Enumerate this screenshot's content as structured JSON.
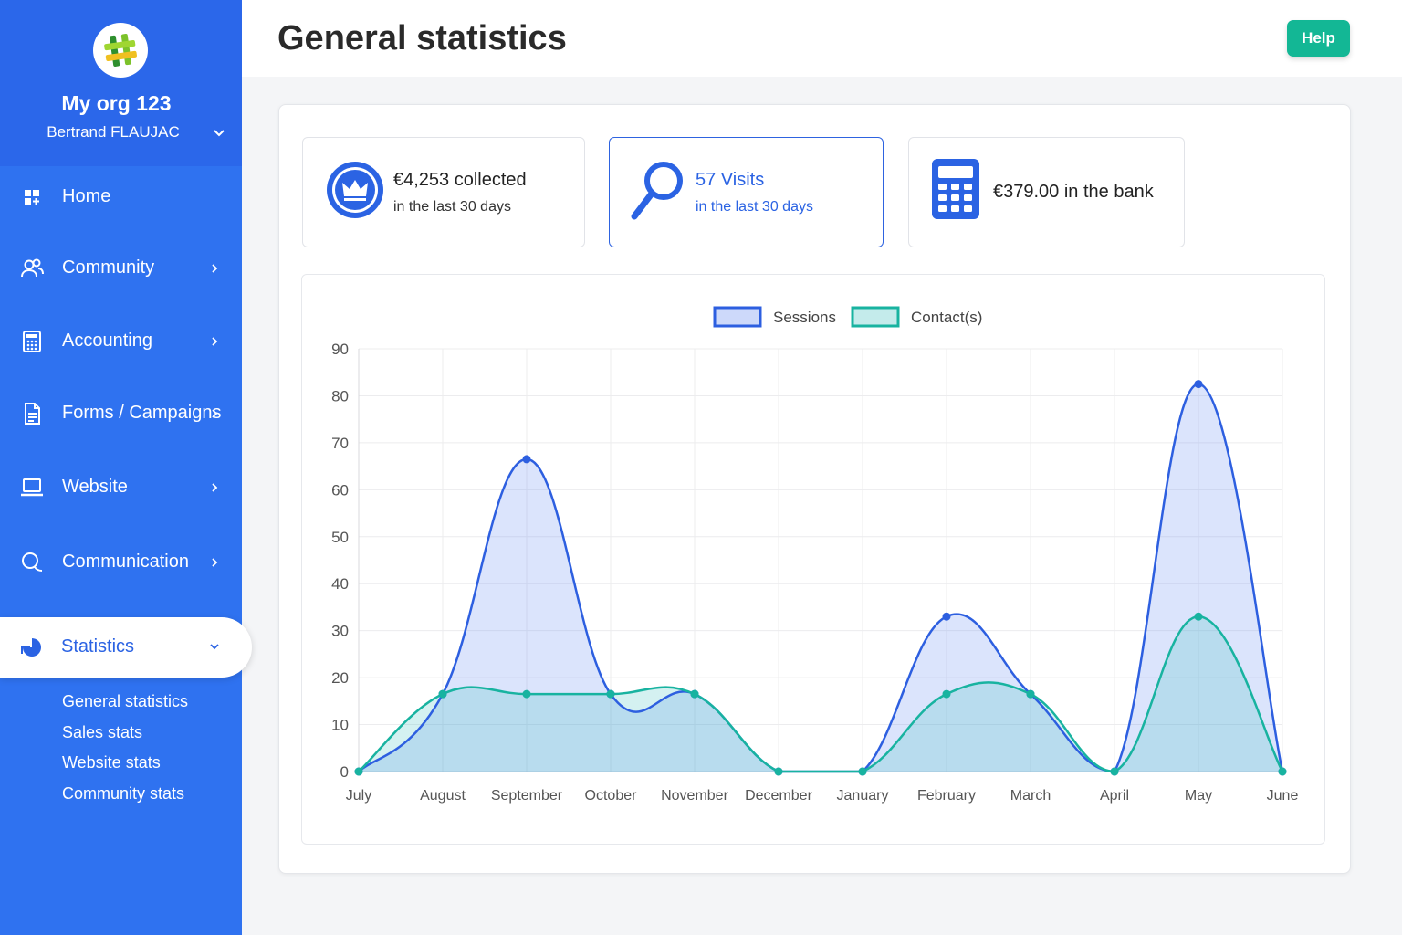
{
  "sidebar": {
    "org_name": "My org 123",
    "user_name": "Bertrand FLAUJAC",
    "items": [
      {
        "label": "Home",
        "icon": "dashboard-icon"
      },
      {
        "label": "Community",
        "icon": "users-icon"
      },
      {
        "label": "Accounting",
        "icon": "calculator-icon"
      },
      {
        "label": "Forms / Campaigns",
        "icon": "document-icon"
      },
      {
        "label": "Website",
        "icon": "laptop-icon"
      },
      {
        "label": "Communication",
        "icon": "chat-icon"
      },
      {
        "label": "Statistics",
        "icon": "pie-chart-icon"
      }
    ],
    "submenu": [
      "General statistics",
      "Sales stats",
      "Website stats",
      "Community stats"
    ]
  },
  "header": {
    "title": "General statistics",
    "help_label": "Help"
  },
  "cards": [
    {
      "main": "€4,253 collected",
      "sub": "in the last 30 days"
    },
    {
      "main": "57 Visits",
      "sub": "in the last 30 days"
    },
    {
      "main": "€379.00 in the bank",
      "sub": ""
    }
  ],
  "colors": {
    "sidebar": "#2f72f0",
    "accent": "#2b63e3",
    "help": "#13b795",
    "sessions_line": "#2d5fe0",
    "contacts_line": "#18b3a0"
  },
  "chart_data": {
    "type": "area",
    "categories": [
      "July",
      "August",
      "September",
      "October",
      "November",
      "December",
      "January",
      "February",
      "March",
      "April",
      "May",
      "June"
    ],
    "series": [
      {
        "name": "Sessions",
        "values": [
          0,
          16.5,
          66.5,
          16.5,
          16.5,
          0,
          0,
          33,
          16.5,
          0,
          82.5,
          0
        ]
      },
      {
        "name": "Contact(s)",
        "values": [
          0,
          16.5,
          16.5,
          16.5,
          16.5,
          0,
          0,
          16.5,
          16.5,
          0,
          33,
          0
        ]
      }
    ],
    "ylim": [
      0,
      90
    ],
    "yticks": [
      0,
      10,
      20,
      30,
      40,
      50,
      60,
      70,
      80,
      90
    ],
    "grid": true,
    "legend": "top-center",
    "xlabel": "",
    "ylabel": ""
  }
}
